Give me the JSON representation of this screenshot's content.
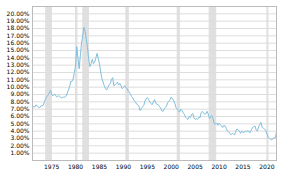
{
  "chart_data": {
    "type": "line",
    "x": [
      1971.17,
      1971.5,
      1971.75,
      1972.0,
      1972.25,
      1972.5,
      1972.75,
      1973.0,
      1973.25,
      1973.5,
      1973.75,
      1974.0,
      1974.25,
      1974.5,
      1974.75,
      1975.0,
      1975.25,
      1975.5,
      1975.75,
      1976.0,
      1976.25,
      1976.5,
      1976.75,
      1977.0,
      1977.25,
      1977.5,
      1977.75,
      1978.0,
      1978.25,
      1978.5,
      1978.75,
      1979.0,
      1979.25,
      1979.5,
      1979.75,
      1980.0,
      1980.25,
      1980.5,
      1980.75,
      1981.0,
      1981.25,
      1981.5,
      1981.75,
      1982.0,
      1982.25,
      1982.5,
      1982.75,
      1983.0,
      1983.25,
      1983.5,
      1983.75,
      1984.0,
      1984.25,
      1984.5,
      1984.75,
      1985.0,
      1985.25,
      1985.5,
      1985.75,
      1986.0,
      1986.25,
      1986.5,
      1986.75,
      1987.0,
      1987.25,
      1987.5,
      1987.75,
      1988.0,
      1988.25,
      1988.5,
      1988.75,
      1989.0,
      1989.25,
      1989.5,
      1989.75,
      1990.0,
      1990.25,
      1990.5,
      1990.75,
      1991.0,
      1991.25,
      1991.5,
      1991.75,
      1992.0,
      1992.25,
      1992.5,
      1992.75,
      1993.0,
      1993.25,
      1993.5,
      1993.75,
      1994.0,
      1994.25,
      1994.5,
      1994.75,
      1995.0,
      1995.25,
      1995.5,
      1995.75,
      1996.0,
      1996.25,
      1996.5,
      1996.75,
      1997.0,
      1997.25,
      1997.5,
      1997.75,
      1998.0,
      1998.25,
      1998.5,
      1998.75,
      1999.0,
      1999.25,
      1999.5,
      1999.75,
      2000.0,
      2000.25,
      2000.5,
      2000.75,
      2001.0,
      2001.25,
      2001.5,
      2001.75,
      2002.0,
      2002.25,
      2002.5,
      2002.75,
      2003.0,
      2003.25,
      2003.5,
      2003.75,
      2004.0,
      2004.25,
      2004.5,
      2004.75,
      2005.0,
      2005.25,
      2005.5,
      2005.75,
      2006.0,
      2006.25,
      2006.5,
      2006.75,
      2007.0,
      2007.25,
      2007.5,
      2007.75,
      2008.0,
      2008.25,
      2008.5,
      2008.75,
      2009.0,
      2009.25,
      2009.5,
      2009.75,
      2010.0,
      2010.25,
      2010.5,
      2010.75,
      2011.0,
      2011.25,
      2011.5,
      2011.75,
      2012.0,
      2012.25,
      2012.5,
      2012.75,
      2013.0,
      2013.25,
      2013.5,
      2013.75,
      2014.0,
      2014.25,
      2014.5,
      2014.75,
      2015.0,
      2015.25,
      2015.5,
      2015.75,
      2016.0,
      2016.25,
      2016.5,
      2016.75,
      2017.0,
      2017.25,
      2017.5,
      2017.75,
      2018.0,
      2018.25,
      2018.5,
      2018.75,
      2019.0,
      2019.25,
      2019.5,
      2019.75,
      2020.0,
      2020.25,
      2020.5,
      2020.75,
      2021.0,
      2021.25,
      2021.5,
      2021.75,
      2022.0
    ],
    "values": [
      7.33,
      7.31,
      7.6,
      7.38,
      7.27,
      7.21,
      7.44,
      7.46,
      7.56,
      8.02,
      8.45,
      8.71,
      8.92,
      9.19,
      9.59,
      9.05,
      8.82,
      9.0,
      9.0,
      8.7,
      8.7,
      8.85,
      8.7,
      8.51,
      8.63,
      8.62,
      8.63,
      8.76,
      9.16,
      9.6,
      10.03,
      10.78,
      10.78,
      11.11,
      12.0,
      12.88,
      15.5,
      14.0,
      12.5,
      14.3,
      16.0,
      17.0,
      18.16,
      17.6,
      16.5,
      15.38,
      13.8,
      12.8,
      13.2,
      13.8,
      13.2,
      13.4,
      14.0,
      14.6,
      13.9,
      13.2,
      12.1,
      11.2,
      10.7,
      10.2,
      9.8,
      9.6,
      10.0,
      10.3,
      10.5,
      11.0,
      11.3,
      10.2,
      10.3,
      10.5,
      10.7,
      10.3,
      10.5,
      10.2,
      9.8,
      9.95,
      10.2,
      10.0,
      9.8,
      9.5,
      9.3,
      9.0,
      8.7,
      8.5,
      8.15,
      8.0,
      7.7,
      7.6,
      7.4,
      6.8,
      7.1,
      7.3,
      7.5,
      8.1,
      8.4,
      8.6,
      8.3,
      8.0,
      7.8,
      7.6,
      8.0,
      8.3,
      7.8,
      7.7,
      7.6,
      7.4,
      7.2,
      6.8,
      6.7,
      7.0,
      7.2,
      7.4,
      7.9,
      8.05,
      8.3,
      8.64,
      8.4,
      8.15,
      7.8,
      7.2,
      7.0,
      6.8,
      6.6,
      7.0,
      6.8,
      6.5,
      6.3,
      5.9,
      5.7,
      5.6,
      6.0,
      5.85,
      6.3,
      6.4,
      5.8,
      5.6,
      5.7,
      5.6,
      5.9,
      5.8,
      6.5,
      6.7,
      6.5,
      6.3,
      6.4,
      6.7,
      6.3,
      5.7,
      6.0,
      6.1,
      5.7,
      5.0,
      5.0,
      5.1,
      4.8,
      5.1,
      4.9,
      4.7,
      4.5,
      4.8,
      4.7,
      4.4,
      4.0,
      3.9,
      3.7,
      3.5,
      3.7,
      3.6,
      3.5,
      4.0,
      4.3,
      4.1,
      4.0,
      3.7,
      4.0,
      3.8,
      3.9,
      4.0,
      3.9,
      4.1,
      3.9,
      3.8,
      4.2,
      4.5,
      4.6,
      4.7,
      4.2,
      4.0,
      4.6,
      4.9,
      5.2,
      4.5,
      4.4,
      4.3,
      4.1,
      3.6,
      3.2,
      3.0,
      2.9,
      2.8,
      3.0,
      3.1,
      3.1,
      3.9
    ],
    "color": "#7fbfdf",
    "shading": {
      "color": "#e0e0e0",
      "ranges": [
        [
          1973.75,
          1975.17
        ],
        [
          1980.0,
          1980.5
        ],
        [
          1981.5,
          1982.92
        ],
        [
          1990.5,
          1991.25
        ],
        [
          2001.25,
          2001.92
        ],
        [
          2007.92,
          2009.5
        ],
        [
          2020.0,
          2020.42
        ]
      ]
    },
    "xlim": [
      1971,
      2022
    ],
    "xticks": [
      1975,
      1980,
      1985,
      1990,
      1995,
      2000,
      2005,
      2010,
      2015,
      2020
    ],
    "ylim": [
      0,
      21
    ],
    "yticks": [
      {
        "value": 1,
        "label": "1.00%"
      },
      {
        "value": 2,
        "label": "2.00%"
      },
      {
        "value": 3,
        "label": "3.00%"
      },
      {
        "value": 4,
        "label": "4.00%"
      },
      {
        "value": 5,
        "label": "5.00%"
      },
      {
        "value": 6,
        "label": "6.00%"
      },
      {
        "value": 7,
        "label": "7.00%"
      },
      {
        "value": 8,
        "label": "8.00%"
      },
      {
        "value": 9,
        "label": "9.00%"
      },
      {
        "value": 10,
        "label": "10.00%"
      },
      {
        "value": 11,
        "label": "11.00%"
      },
      {
        "value": 12,
        "label": "12.00%"
      },
      {
        "value": 13,
        "label": "13.00%"
      },
      {
        "value": 14,
        "label": "14.00%"
      },
      {
        "value": 15,
        "label": "15.00%"
      },
      {
        "value": 16,
        "label": "16.00%"
      },
      {
        "value": 17,
        "label": "17.00%"
      },
      {
        "value": 18,
        "label": "18.00%"
      },
      {
        "value": 19,
        "label": "19.00%"
      },
      {
        "value": 20,
        "label": "20.00%"
      }
    ],
    "grid": true
  }
}
